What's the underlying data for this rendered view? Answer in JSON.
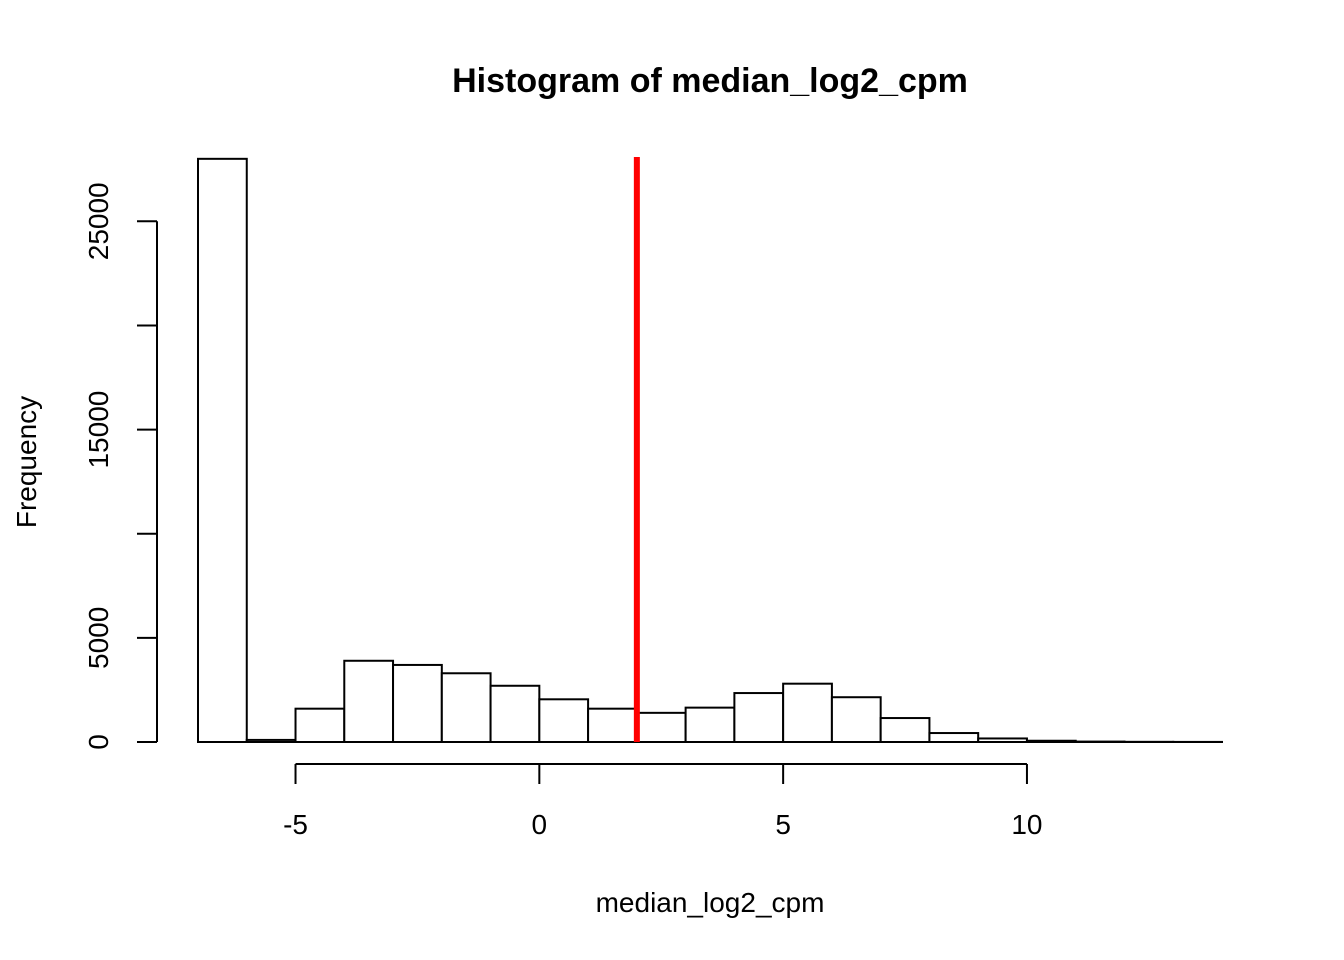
{
  "chart_data": {
    "type": "bar",
    "subtype": "histogram",
    "title": "Histogram of median_log2_cpm",
    "xlabel": "median_log2_cpm",
    "ylabel": "Frequency",
    "bin_edges": [
      -7,
      -6,
      -5,
      -4,
      -3,
      -2,
      -1,
      0,
      1,
      2,
      3,
      4,
      5,
      6,
      7,
      8,
      9,
      10,
      11,
      12,
      13,
      14
    ],
    "values": [
      28000,
      100,
      1600,
      3900,
      3700,
      3300,
      2700,
      2050,
      1600,
      1400,
      1650,
      2350,
      2800,
      2150,
      1150,
      430,
      170,
      60,
      20,
      8,
      4
    ],
    "xlim": [
      -7,
      14
    ],
    "ylim": [
      0,
      29000
    ],
    "x_ticks": [
      -5,
      0,
      5,
      10
    ],
    "x_tick_labels": [
      "-5",
      "0",
      "5",
      "10"
    ],
    "y_ticks": [
      0,
      5000,
      10000,
      15000,
      20000,
      25000
    ],
    "y_tick_labels": [
      "0",
      "5000",
      "",
      "15000",
      "",
      "25000"
    ],
    "reference_line": {
      "x": 2,
      "color": "#ff0000"
    },
    "grid": false
  }
}
